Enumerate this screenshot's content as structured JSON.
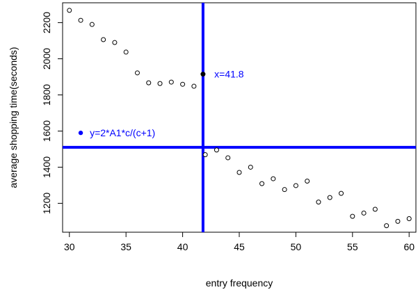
{
  "chart_data": {
    "type": "scatter",
    "xlabel": "entry frequency",
    "ylabel": "average shopping time(seconds)",
    "xlim": [
      29.4,
      60.6
    ],
    "ylim": [
      1040,
      2310
    ],
    "xticks": [
      30,
      35,
      40,
      45,
      50,
      55,
      60
    ],
    "yticks": [
      1200,
      1400,
      1600,
      1800,
      2000,
      2200
    ],
    "grid": false,
    "points": [
      {
        "x": 30,
        "y": 2268
      },
      {
        "x": 31,
        "y": 2213
      },
      {
        "x": 32,
        "y": 2190
      },
      {
        "x": 33,
        "y": 2106
      },
      {
        "x": 34,
        "y": 2090
      },
      {
        "x": 35,
        "y": 2037
      },
      {
        "x": 36,
        "y": 1922
      },
      {
        "x": 37,
        "y": 1867
      },
      {
        "x": 38,
        "y": 1863
      },
      {
        "x": 39,
        "y": 1871
      },
      {
        "x": 40,
        "y": 1859
      },
      {
        "x": 41,
        "y": 1848
      },
      {
        "x": 42,
        "y": 1469
      },
      {
        "x": 43,
        "y": 1495
      },
      {
        "x": 44,
        "y": 1452
      },
      {
        "x": 45,
        "y": 1371
      },
      {
        "x": 46,
        "y": 1400
      },
      {
        "x": 47,
        "y": 1309
      },
      {
        "x": 48,
        "y": 1336
      },
      {
        "x": 49,
        "y": 1276
      },
      {
        "x": 50,
        "y": 1298
      },
      {
        "x": 51,
        "y": 1323
      },
      {
        "x": 52,
        "y": 1207
      },
      {
        "x": 53,
        "y": 1232
      },
      {
        "x": 54,
        "y": 1255
      },
      {
        "x": 55,
        "y": 1128
      },
      {
        "x": 56,
        "y": 1146
      },
      {
        "x": 57,
        "y": 1167
      },
      {
        "x": 58,
        "y": 1076
      },
      {
        "x": 59,
        "y": 1100
      },
      {
        "x": 60,
        "y": 1115
      }
    ],
    "highlight_point": {
      "x": 41.8,
      "y": 1915,
      "color": "#000000"
    },
    "vline": {
      "x": 41.8,
      "color": "#0000ff"
    },
    "hline": {
      "y": 1510,
      "color": "#0000ff"
    },
    "vline_label": {
      "text": "x=41.8",
      "x": 42.8,
      "y": 1915
    },
    "legend_point": {
      "x": 31,
      "y": 1590,
      "color": "#0000ff"
    },
    "legend_text": {
      "text": "y=2*A1*c/(c+1)",
      "x": 31.8,
      "y": 1590
    },
    "accent_color": "#0000ff"
  }
}
